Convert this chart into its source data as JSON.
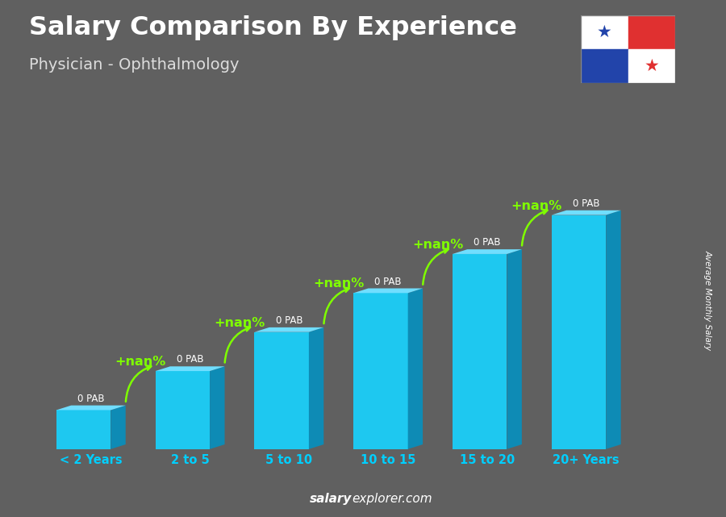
{
  "title": "Salary Comparison By Experience",
  "subtitle": "Physician - Ophthalmology",
  "categories": [
    "< 2 Years",
    "2 to 5",
    "5 to 10",
    "10 to 15",
    "15 to 20",
    "20+ Years"
  ],
  "values": [
    1,
    2,
    3,
    4,
    5,
    6
  ],
  "bar_color_face": "#1EC8F0",
  "bar_color_side": "#0E8BB5",
  "bar_color_top": "#70DEFF",
  "background_color": "#606060",
  "title_color": "#ffffff",
  "subtitle_color": "#dddddd",
  "pab_labels": [
    "0 PAB",
    "0 PAB",
    "0 PAB",
    "0 PAB",
    "0 PAB",
    "0 PAB"
  ],
  "percent_labels": [
    "+nan%",
    "+nan%",
    "+nan%",
    "+nan%",
    "+nan%"
  ],
  "ylabel": "Average Monthly Salary",
  "arrow_color": "#7FFF00",
  "percent_color": "#7FFF00",
  "xlabel_color": "#00CFFF",
  "footer_bold": "salary",
  "footer_normal": "explorer.com"
}
